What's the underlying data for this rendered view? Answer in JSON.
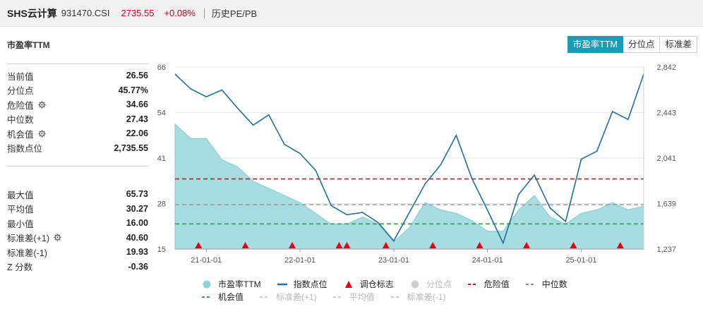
{
  "header": {
    "name": "SHS云计算",
    "code": "931470.CSI",
    "price": "2735.55",
    "change": "+0.08%",
    "tab": "历史PE/PB"
  },
  "panel": {
    "title": "市盈率TTM",
    "stats1": [
      {
        "label": "当前值",
        "value": "26.56",
        "gear": false
      },
      {
        "label": "分位点",
        "value": "45.77%",
        "gear": false
      },
      {
        "label": "危险值",
        "value": "34.66",
        "gear": true
      },
      {
        "label": "中位数",
        "value": "27.43",
        "gear": false
      },
      {
        "label": "机会值",
        "value": "22.06",
        "gear": true
      },
      {
        "label": "指数点位",
        "value": "2,735.55",
        "gear": false
      }
    ],
    "stats2": [
      {
        "label": "最大值",
        "value": "65.73",
        "gear": false
      },
      {
        "label": "平均值",
        "value": "30.27",
        "gear": false
      },
      {
        "label": "最小值",
        "value": "16.00",
        "gear": false
      },
      {
        "label": "标准差(+1)",
        "value": "40.60",
        "gear": true
      },
      {
        "label": "标准差(-1)",
        "value": "19.93",
        "gear": false
      },
      {
        "label": "Z 分数",
        "value": "-0.36",
        "gear": false
      }
    ]
  },
  "buttons": [
    {
      "label": "市盈率TTM",
      "active": true
    },
    {
      "label": "分位点",
      "active": false
    },
    {
      "label": "标准差",
      "active": false
    }
  ],
  "legend": {
    "row1": [
      {
        "label": "市盈率TTM",
        "kind": "dot",
        "color": "#8fd2d9",
        "disabled": false
      },
      {
        "label": "指数点位",
        "kind": "line",
        "color": "#1f6f9b",
        "disabled": false
      },
      {
        "label": "调仓标志",
        "kind": "triangle",
        "color": "#e60012",
        "disabled": false
      },
      {
        "label": "分位点",
        "kind": "dot",
        "color": "#cfcfcf",
        "disabled": true
      },
      {
        "label": "危险值",
        "kind": "dash",
        "color": "#b22222",
        "disabled": false
      },
      {
        "label": "中位数",
        "kind": "dash",
        "color": "#888888",
        "disabled": false
      }
    ],
    "row2": [
      {
        "label": "机会值",
        "kind": "dash",
        "color": "#2e9e4f",
        "disabled": false
      },
      {
        "label": "标准差(+1)",
        "kind": "dash",
        "color": "#cccccc",
        "disabled": true
      },
      {
        "label": "平均值",
        "kind": "dash",
        "color": "#cccccc",
        "disabled": true
      },
      {
        "label": "标准差(-1)",
        "kind": "dash",
        "color": "#cccccc",
        "disabled": true
      }
    ]
  },
  "chart_data": {
    "type": "area",
    "x_ticks": [
      "21-01-01",
      "22-01-01",
      "23-01-01",
      "24-01-01",
      "25-01-01"
    ],
    "y_left_ticks": [
      "66",
      "54",
      "41",
      "28",
      "15"
    ],
    "y_right_ticks": [
      "2,842",
      "2,443",
      "2,041",
      "1,639",
      "1,237"
    ],
    "ylim_left": [
      15,
      66
    ],
    "ylim_right": [
      1237,
      2842
    ],
    "x": [
      "2020-09",
      "2020-11",
      "2021-01",
      "2021-03",
      "2021-05",
      "2021-07",
      "2021-09",
      "2021-11",
      "2022-01",
      "2022-03",
      "2022-05",
      "2022-07",
      "2022-09",
      "2022-11",
      "2023-01",
      "2023-03",
      "2023-05",
      "2023-07",
      "2023-09",
      "2023-11",
      "2024-01",
      "2024-03",
      "2024-05",
      "2024-07",
      "2024-09",
      "2024-11",
      "2025-01",
      "2025-03",
      "2025-05",
      "2025-07",
      "2025-09"
    ],
    "series": [
      {
        "name": "市盈率TTM",
        "axis": "left",
        "values": [
          50,
          46,
          46,
          40,
          38,
          34,
          32,
          30,
          28,
          25,
          22,
          22,
          24,
          22,
          17,
          21,
          28,
          26,
          25,
          23,
          20,
          20,
          26,
          30,
          24,
          22,
          25,
          26,
          28,
          26,
          27
        ]
      },
      {
        "name": "指数点位",
        "axis": "right",
        "values": [
          2780,
          2650,
          2580,
          2640,
          2480,
          2330,
          2420,
          2160,
          2080,
          1930,
          1620,
          1540,
          1560,
          1470,
          1310,
          1560,
          1810,
          1980,
          2240,
          1860,
          1580,
          1290,
          1720,
          1890,
          1600,
          1480,
          2030,
          2100,
          2450,
          2380,
          2780
        ]
      }
    ],
    "reference_lines": {
      "危险值": 34.66,
      "中位数": 27.43,
      "机会值": 22.06
    },
    "rebalance_markers": [
      "2020-12",
      "2021-06",
      "2021-12",
      "2022-06",
      "2022-07",
      "2022-12",
      "2023-06",
      "2023-12",
      "2024-06",
      "2024-12",
      "2025-06"
    ],
    "legend_position": "bottom"
  }
}
